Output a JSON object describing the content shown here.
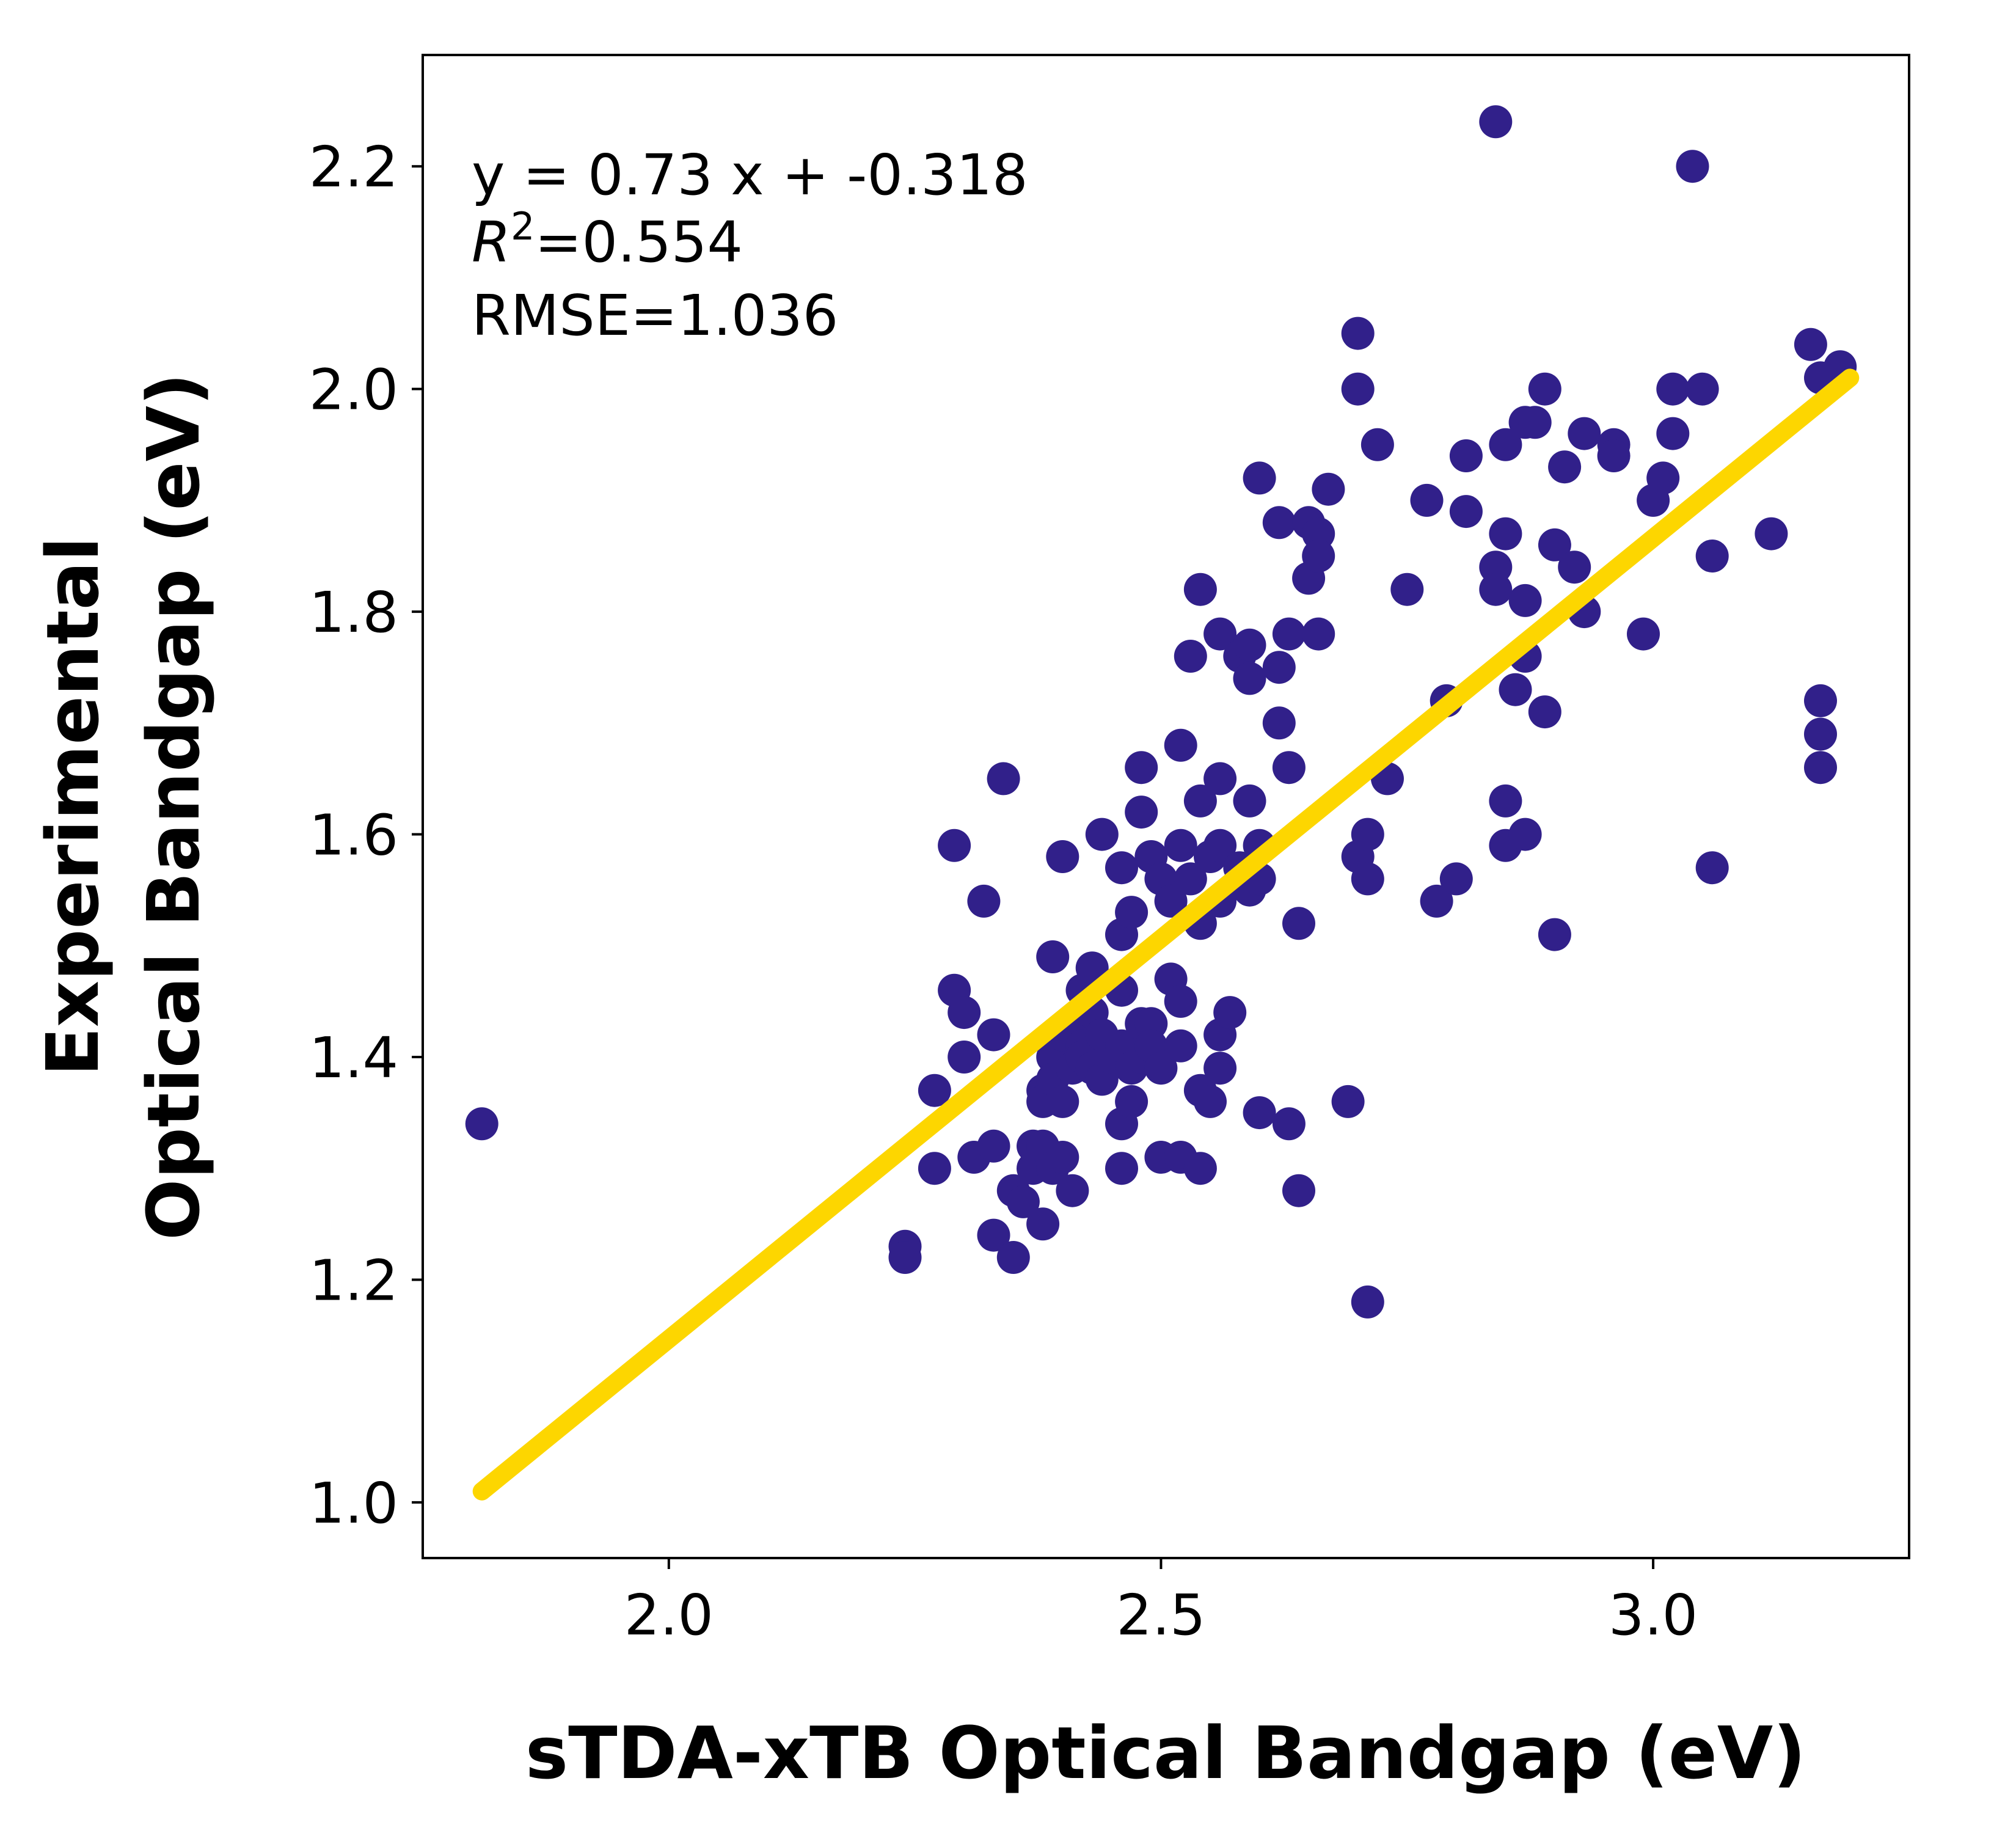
{
  "chart_data": {
    "type": "scatter",
    "xlabel": "sTDA-xTB Optical Bandgap (eV)",
    "ylabel_lines": [
      "Experimental",
      "Optical Bandgap (eV)"
    ],
    "xlim": [
      1.75,
      3.26
    ],
    "ylim": [
      0.95,
      2.3
    ],
    "x_ticks": [
      2.0,
      2.5,
      3.0
    ],
    "x_tick_labels": [
      "2.0",
      "2.5",
      "3.0"
    ],
    "y_ticks": [
      1.0,
      1.2,
      1.4,
      1.6,
      1.8,
      2.0,
      2.2
    ],
    "y_tick_labels": [
      "1.0",
      "1.2",
      "1.4",
      "1.6",
      "1.8",
      "2.0",
      "2.2"
    ],
    "grid": false,
    "annotations": {
      "equation": "y = 0.73 x + -0.318",
      "r2_label": "R",
      "r2_superscript": "2",
      "r2_value": "=0.554",
      "rmse": "RMSE=1.036"
    },
    "colors": {
      "points": "#31208a",
      "fit_line": "#fdd600"
    },
    "fit_line": {
      "x": [
        1.81,
        3.2
      ],
      "y": [
        1.01,
        2.01
      ]
    },
    "points": [
      [
        1.81,
        1.34
      ],
      [
        2.24,
        1.23
      ],
      [
        2.24,
        1.22
      ],
      [
        2.27,
        1.37
      ],
      [
        2.27,
        1.3
      ],
      [
        2.29,
        1.59
      ],
      [
        2.29,
        1.46
      ],
      [
        2.3,
        1.44
      ],
      [
        2.3,
        1.4
      ],
      [
        2.31,
        1.31
      ],
      [
        2.32,
        1.54
      ],
      [
        2.33,
        1.42
      ],
      [
        2.33,
        1.32
      ],
      [
        2.33,
        1.24
      ],
      [
        2.34,
        1.65
      ],
      [
        2.35,
        1.28
      ],
      [
        2.35,
        1.22
      ],
      [
        2.36,
        1.27
      ],
      [
        2.37,
        1.32
      ],
      [
        2.37,
        1.3
      ],
      [
        2.38,
        1.25
      ],
      [
        2.38,
        1.37
      ],
      [
        2.38,
        1.36
      ],
      [
        2.38,
        1.32
      ],
      [
        2.39,
        1.49
      ],
      [
        2.39,
        1.4
      ],
      [
        2.39,
        1.38
      ],
      [
        2.39,
        1.3
      ],
      [
        2.4,
        1.58
      ],
      [
        2.4,
        1.42
      ],
      [
        2.4,
        1.36
      ],
      [
        2.4,
        1.31
      ],
      [
        2.41,
        1.43
      ],
      [
        2.41,
        1.39
      ],
      [
        2.41,
        1.28
      ],
      [
        2.42,
        1.46
      ],
      [
        2.42,
        1.41
      ],
      [
        2.42,
        1.4
      ],
      [
        2.43,
        1.48
      ],
      [
        2.43,
        1.44
      ],
      [
        2.43,
        1.39
      ],
      [
        2.44,
        1.6
      ],
      [
        2.44,
        1.42
      ],
      [
        2.44,
        1.38
      ],
      [
        2.45,
        1.4
      ],
      [
        2.46,
        1.57
      ],
      [
        2.46,
        1.51
      ],
      [
        2.46,
        1.46
      ],
      [
        2.46,
        1.41
      ],
      [
        2.46,
        1.34
      ],
      [
        2.46,
        1.3
      ],
      [
        2.47,
        1.53
      ],
      [
        2.47,
        1.39
      ],
      [
        2.47,
        1.36
      ],
      [
        2.48,
        1.66
      ],
      [
        2.48,
        1.62
      ],
      [
        2.48,
        1.43
      ],
      [
        2.48,
        1.4
      ],
      [
        2.49,
        1.58
      ],
      [
        2.49,
        1.43
      ],
      [
        2.49,
        1.41
      ],
      [
        2.5,
        1.56
      ],
      [
        2.5,
        1.39
      ],
      [
        2.5,
        1.31
      ],
      [
        2.51,
        1.54
      ],
      [
        2.51,
        1.47
      ],
      [
        2.52,
        1.68
      ],
      [
        2.52,
        1.59
      ],
      [
        2.52,
        1.45
      ],
      [
        2.52,
        1.41
      ],
      [
        2.52,
        1.31
      ],
      [
        2.53,
        1.76
      ],
      [
        2.53,
        1.56
      ],
      [
        2.54,
        1.82
      ],
      [
        2.54,
        1.63
      ],
      [
        2.54,
        1.52
      ],
      [
        2.54,
        1.37
      ],
      [
        2.54,
        1.3
      ],
      [
        2.55,
        1.58
      ],
      [
        2.55,
        1.36
      ],
      [
        2.56,
        1.78
      ],
      [
        2.56,
        1.65
      ],
      [
        2.56,
        1.59
      ],
      [
        2.56,
        1.54
      ],
      [
        2.56,
        1.42
      ],
      [
        2.56,
        1.39
      ],
      [
        2.57,
        1.44
      ],
      [
        2.58,
        1.76
      ],
      [
        2.58,
        1.57
      ],
      [
        2.59,
        1.77
      ],
      [
        2.59,
        1.74
      ],
      [
        2.59,
        1.63
      ],
      [
        2.59,
        1.55
      ],
      [
        2.6,
        1.92
      ],
      [
        2.6,
        1.59
      ],
      [
        2.6,
        1.56
      ],
      [
        2.6,
        1.35
      ],
      [
        2.62,
        1.88
      ],
      [
        2.62,
        1.75
      ],
      [
        2.62,
        1.7
      ],
      [
        2.63,
        1.78
      ],
      [
        2.63,
        1.66
      ],
      [
        2.63,
        1.34
      ],
      [
        2.64,
        1.52
      ],
      [
        2.64,
        1.28
      ],
      [
        2.65,
        1.88
      ],
      [
        2.65,
        1.83
      ],
      [
        2.66,
        1.87
      ],
      [
        2.66,
        1.85
      ],
      [
        2.66,
        1.78
      ],
      [
        2.67,
        1.91
      ],
      [
        2.69,
        1.36
      ],
      [
        2.7,
        2.05
      ],
      [
        2.7,
        2.0
      ],
      [
        2.7,
        1.58
      ],
      [
        2.71,
        1.6
      ],
      [
        2.71,
        1.56
      ],
      [
        2.71,
        1.18
      ],
      [
        2.72,
        1.95
      ],
      [
        2.73,
        1.65
      ],
      [
        2.75,
        1.82
      ],
      [
        2.77,
        1.9
      ],
      [
        2.78,
        1.54
      ],
      [
        2.79,
        1.72
      ],
      [
        2.8,
        1.56
      ],
      [
        2.81,
        1.94
      ],
      [
        2.81,
        1.89
      ],
      [
        2.84,
        2.24
      ],
      [
        2.84,
        1.84
      ],
      [
        2.84,
        1.82
      ],
      [
        2.85,
        1.95
      ],
      [
        2.85,
        1.87
      ],
      [
        2.85,
        1.63
      ],
      [
        2.85,
        1.59
      ],
      [
        2.86,
        1.73
      ],
      [
        2.87,
        1.97
      ],
      [
        2.87,
        1.81
      ],
      [
        2.87,
        1.76
      ],
      [
        2.87,
        1.6
      ],
      [
        2.88,
        1.97
      ],
      [
        2.89,
        2.0
      ],
      [
        2.89,
        1.71
      ],
      [
        2.9,
        1.86
      ],
      [
        2.9,
        1.51
      ],
      [
        2.91,
        1.93
      ],
      [
        2.92,
        1.84
      ],
      [
        2.93,
        1.96
      ],
      [
        2.93,
        1.8
      ],
      [
        2.96,
        1.95
      ],
      [
        2.96,
        1.94
      ],
      [
        2.99,
        1.78
      ],
      [
        3.0,
        1.9
      ],
      [
        3.01,
        1.92
      ],
      [
        3.02,
        2.0
      ],
      [
        3.02,
        1.96
      ],
      [
        3.04,
        2.2
      ],
      [
        3.05,
        2.0
      ],
      [
        3.06,
        1.85
      ],
      [
        3.06,
        1.57
      ],
      [
        3.12,
        1.87
      ],
      [
        3.16,
        2.04
      ],
      [
        3.17,
        2.01
      ],
      [
        3.17,
        1.72
      ],
      [
        3.17,
        1.69
      ],
      [
        3.17,
        1.66
      ],
      [
        3.19,
        2.02
      ]
    ]
  }
}
